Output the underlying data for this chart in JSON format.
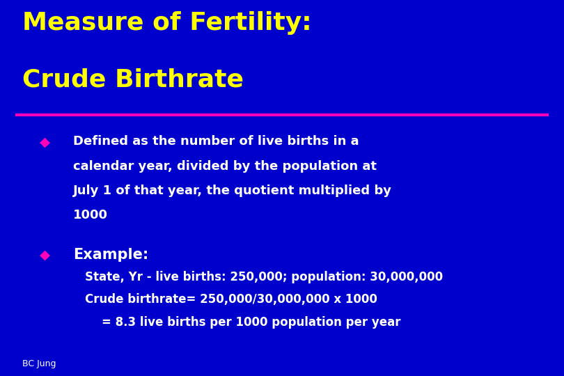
{
  "background_color": "#0000cc",
  "title_line1": "Measure of Fertility:",
  "title_line2": "Crude Birthrate",
  "title_color": "#ffff00",
  "title_fontsize": 26,
  "divider_color": "#ff00bb",
  "bullet_color": "#ff00bb",
  "bullet_symbol": "◆",
  "bullet1_text_line1": "Defined as the number of live births in a",
  "bullet1_text_line2": "calendar year, divided by the population at",
  "bullet1_text_line3": "July 1 of that year, the quotient multiplied by",
  "bullet1_text_line4": "1000",
  "bullet2_text": "Example:",
  "sub1": "State, Yr - live births: 250,000; population: 30,000,000",
  "sub2": "Crude birthrate= 250,000/30,000,000 x 1000",
  "sub3": "= 8.3 live births per 1000 population per year",
  "body_color": "#ffffff",
  "body_fontsize": 13,
  "bullet_fontsize": 14,
  "example_fontsize": 15,
  "footer_text": "BC Jung",
  "footer_color": "#ffffff",
  "footer_fontsize": 9
}
